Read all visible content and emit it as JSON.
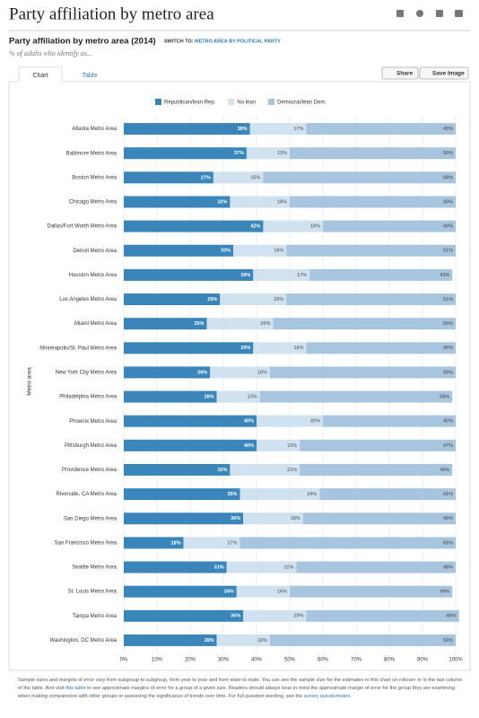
{
  "header": {
    "title": "Party affiliation by metro area",
    "subtitle": "Party affiliation by metro area (2014)",
    "switch_label": "SWITCH TO:",
    "switch_link": "METRO AREA BY POLITICAL PARTY",
    "description": "% of adults who identify as...",
    "tabs": [
      "Chart",
      "Table"
    ],
    "buttons": [
      "Share",
      "Save Image"
    ]
  },
  "chart_data": {
    "type": "stacked-bar-horizontal",
    "y_label": "Metro area",
    "categories": [
      "Atlanta Metro Area",
      "Baltimore Metro Area",
      "Boston Metro Area",
      "Chicago Metro Area",
      "Dallas/Fort Worth Metro Area",
      "Detroit Metro Area",
      "Houston Metro Area",
      "Los Angeles Metro Area",
      "Miami Metro Area",
      "Minneapolis/St. Paul Metro Area",
      "New York City Metro Area",
      "Philadelphia Metro Area",
      "Phoenix Metro Area",
      "Pittsburgh Metro Area",
      "Providence Metro Area",
      "Riverside, CA Metro Area",
      "San Diego Metro Area",
      "San Francisco Metro Area",
      "Seattle Metro Area",
      "St. Louis Metro Area",
      "Tampa Metro Area",
      "Washington, DC Metro Area"
    ],
    "series": [
      {
        "name": "Republican/lean Rep.",
        "color": "#3a86bb",
        "label_color": "#ffffff",
        "values": [
          38,
          37,
          27,
          32,
          42,
          33,
          39,
          29,
          25,
          39,
          26,
          28,
          40,
          40,
          32,
          35,
          36,
          18,
          31,
          34,
          36,
          28
        ],
        "value_labels": [
          "38%",
          "37%",
          "27%",
          "32%",
          "42%",
          "33%",
          "39%",
          "29%",
          "25%",
          "39%",
          "26%",
          "28%",
          "40%",
          "40%",
          "32%",
          "35%",
          "36%",
          "18%",
          "31%",
          "34%",
          "36%",
          "28%"
        ]
      },
      {
        "name": "No lean",
        "color": "#d0e1ef",
        "label_color": "#777777",
        "values": [
          17,
          13,
          15,
          18,
          18,
          16,
          17,
          20,
          20,
          16,
          18,
          13,
          20,
          13,
          21,
          24,
          18,
          17,
          21,
          16,
          19,
          16
        ],
        "value_labels": [
          "17%",
          "13%",
          "15%",
          "18%",
          "18%",
          "16%",
          "17%",
          "20%",
          "20%",
          "16%",
          "18%",
          "13%",
          "20%",
          "13%",
          "21%",
          "24%",
          "18%",
          "17%",
          "21%",
          "16%",
          "19%",
          "16%"
        ]
      },
      {
        "name": "Democrat/lean Dem.",
        "color": "#a8c5df",
        "label_color": "#666666",
        "values": [
          45,
          50,
          58,
          50,
          40,
          51,
          43,
          51,
          55,
          45,
          56,
          58,
          40,
          47,
          46,
          41,
          46,
          65,
          48,
          49,
          46,
          56
        ],
        "value_labels": [
          "45%",
          "50%",
          "58%",
          "50%",
          "40%",
          "51%",
          "43%",
          "51%",
          "55%",
          "45%",
          "56%",
          "58%",
          "40%",
          "47%",
          "46%",
          "41%",
          "46%",
          "65%",
          "48%",
          "49%",
          "46%",
          "56%"
        ]
      }
    ],
    "xlim": [
      0,
      100
    ],
    "xticks": [
      {
        "value": 0,
        "label": "0%"
      },
      {
        "value": 10,
        "label": "10%"
      },
      {
        "value": 20,
        "label": "20%"
      },
      {
        "value": 30,
        "label": "30%"
      },
      {
        "value": 40,
        "label": "40%"
      },
      {
        "value": 50,
        "label": "50%"
      },
      {
        "value": 60,
        "label": "60%"
      },
      {
        "value": 70,
        "label": "70%"
      },
      {
        "value": 80,
        "label": "80%"
      },
      {
        "value": 90,
        "label": "90%"
      },
      {
        "value": 100,
        "label": "100%"
      }
    ],
    "grid": true
  },
  "footnote": {
    "part1": "Sample sizes and margins of error vary from subgroup to subgroup, from year to year and from state to state. You can see the sample size for the estimates in this chart on rollover or in the last column of the table. And visit ",
    "link1": "this table",
    "part2": " to see approximate margins of error for a group of a given size. Readers should always bear in mind the approximate margin of error for the group they are examining when making comparisons with other groups or assessing the significance of trends over time. For full question wording, see the ",
    "link2": "survey questionnaire."
  }
}
